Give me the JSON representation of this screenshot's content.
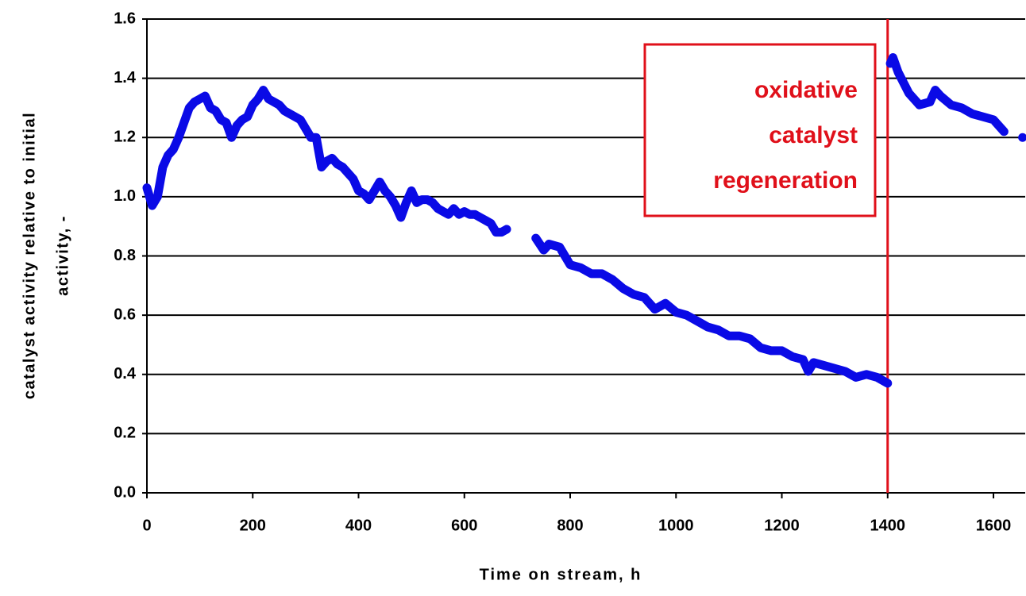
{
  "chart_data": {
    "type": "line",
    "xlabel": "Time on stream, h",
    "ylabel": [
      "catalyst activity relative to initial",
      "activity, -"
    ],
    "annotation": {
      "lines": [
        "oxidative",
        "catalyst",
        "regeneration"
      ],
      "x": 1400,
      "color": "#e0101a"
    },
    "xlim": [
      0,
      1660
    ],
    "xticks": [
      0,
      200,
      400,
      600,
      800,
      1000,
      1200,
      1400,
      1600
    ],
    "ylim": [
      0,
      1.6
    ],
    "yticks": [
      {
        "value": 0,
        "label": "0.0"
      },
      0.2,
      0.4,
      0.6,
      0.8,
      {
        "value": 1,
        "label": "1.0"
      },
      1.2,
      1.4,
      1.6
    ],
    "grid": true,
    "series": [
      {
        "color": "#0a0ae6",
        "x": [
          0,
          10,
          20,
          30,
          40,
          50,
          60,
          70,
          80,
          90,
          100,
          110,
          120,
          130,
          140,
          150,
          160,
          170,
          180,
          190,
          200,
          210,
          220,
          230,
          240,
          250,
          260,
          270,
          280,
          290,
          300,
          310,
          320,
          330,
          340,
          350,
          360,
          370,
          380,
          390,
          400,
          410,
          420,
          430,
          440,
          450,
          460,
          470,
          480,
          490,
          500,
          510,
          520,
          530,
          540,
          550,
          560,
          570,
          580,
          590,
          600,
          610,
          620,
          630,
          640,
          650,
          660,
          670,
          680,
          700,
          735,
          750,
          760,
          780,
          800,
          820,
          840,
          860,
          880,
          900,
          920,
          940,
          960,
          980,
          1000,
          1020,
          1040,
          1060,
          1080,
          1100,
          1120,
          1140,
          1160,
          1180,
          1200,
          1220,
          1240,
          1250,
          1260,
          1280,
          1300,
          1320,
          1340,
          1360,
          1380,
          1400,
          1402,
          1405,
          1410,
          1420,
          1440,
          1460,
          1480,
          1490,
          1500,
          1520,
          1540,
          1560,
          1580,
          1600,
          1620,
          1640,
          1655
        ],
        "values": [
          1.03,
          0.97,
          1.0,
          1.1,
          1.14,
          1.16,
          1.2,
          1.25,
          1.3,
          1.32,
          1.33,
          1.34,
          1.3,
          1.29,
          1.26,
          1.25,
          1.2,
          1.24,
          1.26,
          1.27,
          1.31,
          1.33,
          1.36,
          1.33,
          1.32,
          1.31,
          1.29,
          1.28,
          1.27,
          1.26,
          1.23,
          1.2,
          1.2,
          1.1,
          1.12,
          1.13,
          1.11,
          1.1,
          1.08,
          1.06,
          1.02,
          1.01,
          0.99,
          1.02,
          1.05,
          1.02,
          1.0,
          0.97,
          0.93,
          0.98,
          1.02,
          0.98,
          0.99,
          0.99,
          0.98,
          0.96,
          0.95,
          0.94,
          0.96,
          0.94,
          0.95,
          0.94,
          0.94,
          0.93,
          0.92,
          0.91,
          0.88,
          0.88,
          0.89,
          null,
          0.86,
          0.82,
          0.84,
          0.83,
          0.77,
          0.76,
          0.74,
          0.74,
          0.72,
          0.69,
          0.67,
          0.66,
          0.62,
          0.64,
          0.61,
          0.6,
          0.58,
          0.56,
          0.55,
          0.53,
          0.53,
          0.52,
          0.49,
          0.48,
          0.48,
          0.46,
          0.45,
          0.41,
          0.44,
          0.43,
          0.42,
          0.41,
          0.39,
          0.4,
          0.39,
          0.37,
          null,
          1.45,
          1.47,
          1.42,
          1.35,
          1.31,
          1.32,
          1.36,
          1.34,
          1.31,
          1.3,
          1.28,
          1.27,
          1.26,
          1.22,
          null,
          1.2
        ]
      }
    ]
  }
}
